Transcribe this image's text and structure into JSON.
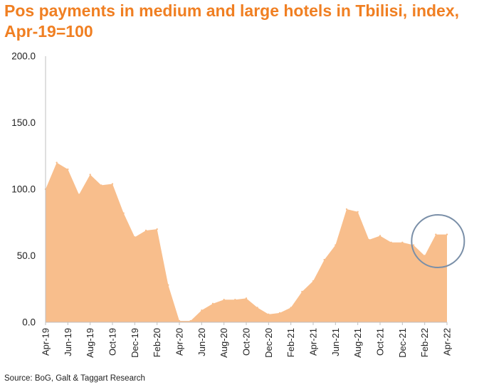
{
  "title": "Pos payments in medium and large hotels in Tbilisi, index, Apr-19=100",
  "source": "Source: BoG, Galt & Taggart Research",
  "colors": {
    "title": "#F07F22",
    "area_fill": "#F8BE8C",
    "highlight_circle": "#7A8FA8",
    "axis": "#BFBFBF"
  },
  "chart_data": {
    "type": "area",
    "title": "Pos payments in medium and large hotels in Tbilisi, index, Apr-19=100",
    "xlabel": "",
    "ylabel": "",
    "ylim": [
      0,
      200
    ],
    "yticks": [
      "0.0",
      "50.0",
      "100.0",
      "150.0",
      "200.0"
    ],
    "grid": false,
    "legend": "none",
    "x": [
      "Apr-19",
      "May-19",
      "Jun-19",
      "Jul-19",
      "Aug-19",
      "Sep-19",
      "Oct-19",
      "Nov-19",
      "Dec-19",
      "Jan-20",
      "Feb-20",
      "Mar-20",
      "Apr-20",
      "May-20",
      "Jun-20",
      "Jul-20",
      "Aug-20",
      "Sep-20",
      "Oct-20",
      "Nov-20",
      "Dec-20",
      "Jan-21",
      "Feb-21",
      "Mar-21",
      "Apr-21",
      "May-21",
      "Jun-21",
      "Jul-21",
      "Aug-21",
      "Sep-21",
      "Oct-21",
      "Nov-21",
      "Dec-21",
      "Jan-22",
      "Feb-22",
      "Mar-22",
      "Apr-22"
    ],
    "xtick_labels": [
      "Apr-19",
      "Jun-19",
      "Aug-19",
      "Oct-19",
      "Dec-19",
      "Feb-20",
      "Apr-20",
      "Jun-20",
      "Aug-20",
      "Oct-20",
      "Dec-20",
      "Feb-21",
      "Apr-21",
      "Jun-21",
      "Aug-21",
      "Oct-21",
      "Dec-21",
      "Feb-22",
      "Apr-22"
    ],
    "series": [
      {
        "values": [
          100,
          120,
          115,
          96,
          111,
          103,
          104,
          82,
          64,
          69,
          70,
          28,
          1,
          1,
          9,
          14,
          17,
          17,
          18,
          11,
          6,
          7,
          11,
          23,
          31,
          47,
          58,
          85,
          83,
          62,
          65,
          60,
          60,
          58,
          50,
          66,
          66
        ]
      }
    ],
    "annotations": [
      {
        "type": "circle",
        "target": "Mar-22",
        "label": ""
      }
    ]
  }
}
